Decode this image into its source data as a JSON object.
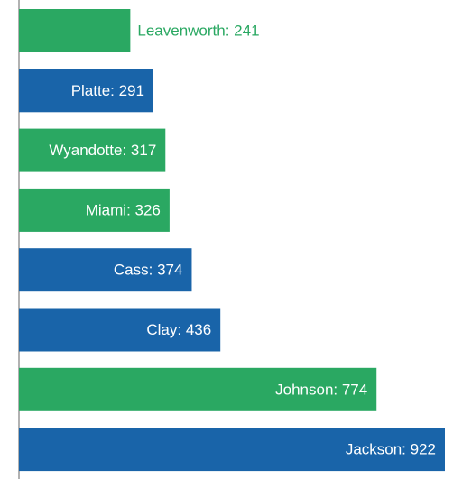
{
  "chart_data": {
    "type": "bar",
    "orientation": "horizontal",
    "values": [
      241,
      291,
      317,
      326,
      374,
      436,
      774,
      922
    ],
    "value_labels": [
      "Leavenworth: 241",
      "Platte: 291",
      "Wyandotte: 317",
      "Miami: 326",
      "Cass: 374",
      "Clay: 436",
      "Johnson: 774",
      "Jackson: 922"
    ],
    "colors": [
      "#2aa862",
      "#1964a9",
      "#2aa862",
      "#2aa862",
      "#1964a9",
      "#1964a9",
      "#2aa862",
      "#1964a9"
    ],
    "xlim": [
      0,
      922
    ]
  }
}
